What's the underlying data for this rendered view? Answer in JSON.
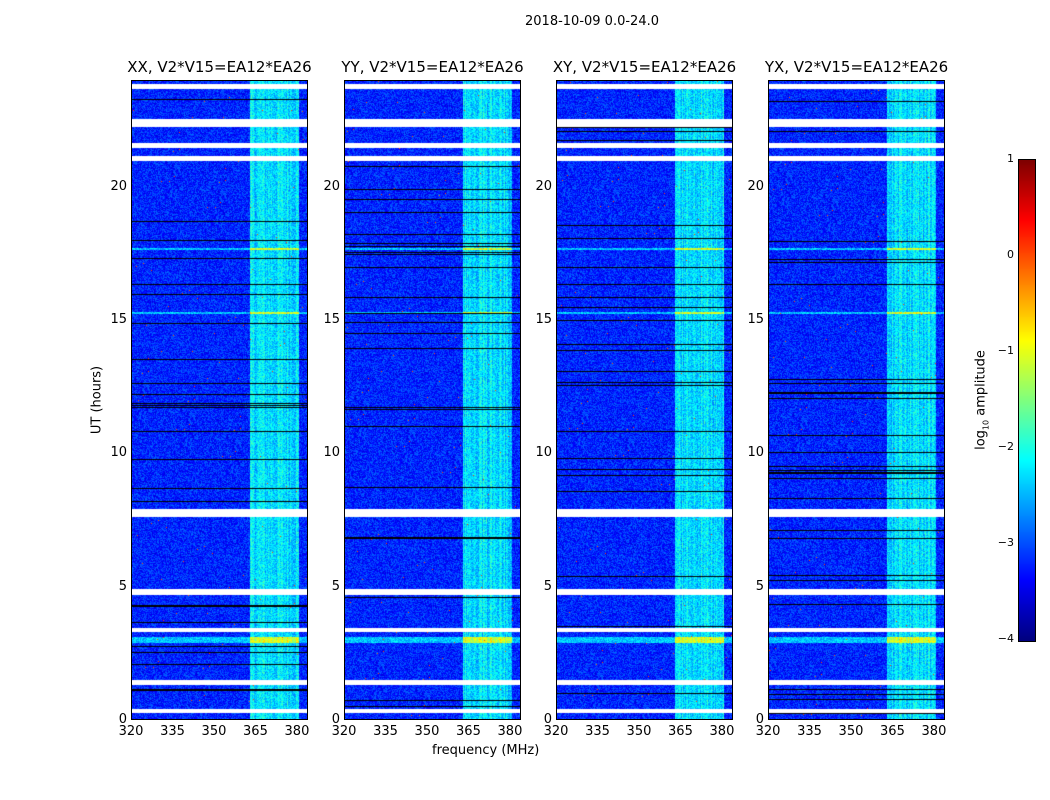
{
  "suptitle": "2018-10-09 0.0-24.0",
  "chart_data": {
    "type": "heatmap",
    "title": "2018-10-09 0.0-24.0",
    "xlabel": "frequency (MHz)",
    "ylabel": "UT (hours)",
    "xlim": [
      320,
      384
    ],
    "ylim": [
      0,
      24
    ],
    "xticks": [
      "320",
      "335",
      "350",
      "365",
      "380"
    ],
    "yticks": [
      "0",
      "5",
      "10",
      "15",
      "20"
    ],
    "panels": [
      {
        "title": "XX, V2*V15=EA12*EA26"
      },
      {
        "title": "YY, V2*V15=EA12*EA26"
      },
      {
        "title": "XY, V2*V15=EA12*EA26"
      },
      {
        "title": "YX, V2*V15=EA12*EA26"
      }
    ],
    "features": {
      "background_log_amplitude": -3.2,
      "band_mhz": [
        363,
        381
      ],
      "band_log_amplitude": -2.2,
      "bright_rows_hours": [
        3.0,
        17.7,
        15.3
      ],
      "flagged_rows_hours": [
        [
          23.7,
          23.9
        ],
        [
          22.3,
          22.6
        ],
        [
          21.5,
          21.7
        ],
        [
          21.0,
          21.2
        ],
        [
          7.6,
          7.9
        ],
        [
          4.7,
          4.9
        ],
        [
          3.3,
          3.45
        ],
        [
          1.3,
          1.5
        ],
        [
          0.25,
          0.4
        ]
      ]
    },
    "colorbar": {
      "label": "log10 amplitude",
      "label_main": "log",
      "label_sub": "10",
      "label_rest": " amplitude",
      "range": [
        -4,
        1
      ],
      "ticks": [
        "1",
        "0",
        "−1",
        "−2",
        "−3",
        "−4"
      ],
      "colormap": "jet"
    }
  }
}
